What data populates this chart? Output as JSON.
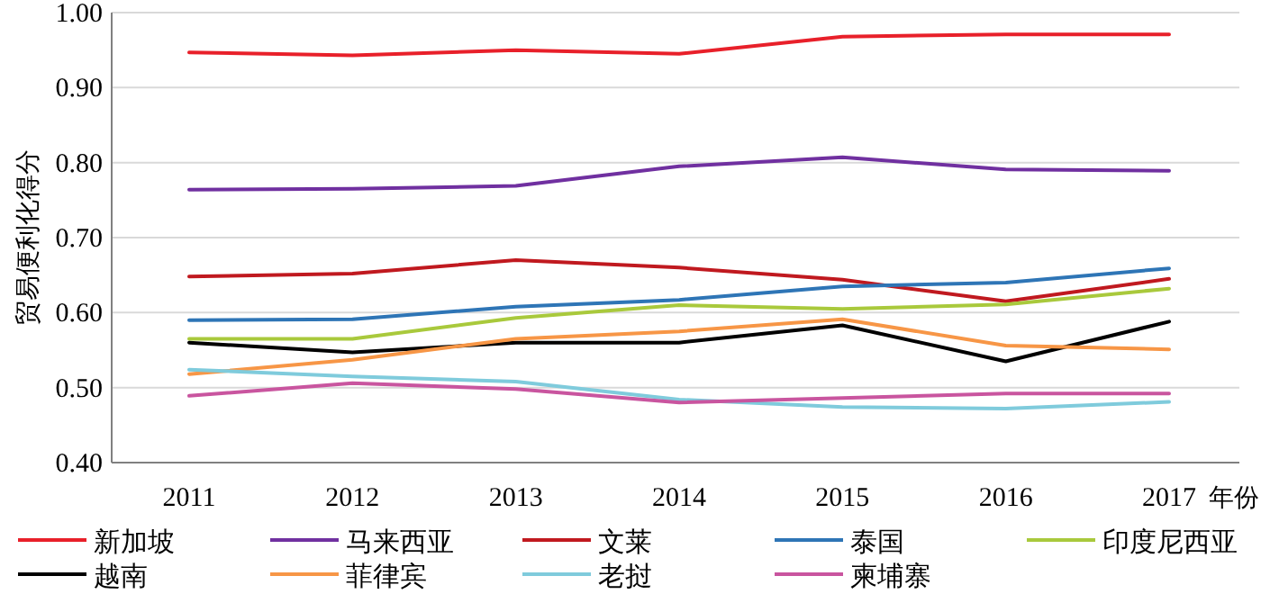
{
  "chart_data": {
    "type": "line",
    "xlabel": "年份",
    "ylabel": "贸易便利化得分",
    "categories": [
      "2011",
      "2012",
      "2013",
      "2014",
      "2015",
      "2016",
      "2017"
    ],
    "series": [
      {
        "name": "新加坡",
        "color": "#e8202a",
        "values": [
          0.947,
          0.943,
          0.95,
          0.945,
          0.968,
          0.971,
          0.971
        ]
      },
      {
        "name": "马来西亚",
        "color": "#7030a0",
        "values": [
          0.764,
          0.765,
          0.769,
          0.795,
          0.807,
          0.791,
          0.789
        ]
      },
      {
        "name": "文莱",
        "color": "#c0191f",
        "values": [
          0.648,
          0.652,
          0.67,
          0.66,
          0.644,
          0.615,
          0.645
        ]
      },
      {
        "name": "泰国",
        "color": "#2e75b6",
        "values": [
          0.59,
          0.591,
          0.608,
          0.617,
          0.635,
          0.64,
          0.659
        ]
      },
      {
        "name": "印度尼西亚",
        "color": "#a9c93c",
        "values": [
          0.565,
          0.565,
          0.593,
          0.61,
          0.605,
          0.611,
          0.632
        ]
      },
      {
        "name": "越南",
        "color": "#000000",
        "values": [
          0.56,
          0.547,
          0.56,
          0.56,
          0.583,
          0.535,
          0.588
        ]
      },
      {
        "name": "菲律宾",
        "color": "#f79646",
        "values": [
          0.518,
          0.537,
          0.565,
          0.575,
          0.591,
          0.556,
          0.551
        ]
      },
      {
        "name": "老挝",
        "color": "#7fcbdc",
        "values": [
          0.524,
          0.515,
          0.508,
          0.484,
          0.474,
          0.472,
          0.481
        ]
      },
      {
        "name": "柬埔寨",
        "color": "#c9559f",
        "values": [
          0.489,
          0.506,
          0.498,
          0.48,
          0.486,
          0.492,
          0.492
        ]
      }
    ],
    "ylim": [
      0.4,
      1.0
    ],
    "yticks": [
      {
        "value": 0.4,
        "label": "0.40"
      },
      {
        "value": 0.5,
        "label": "0.50"
      },
      {
        "value": 0.6,
        "label": "0.60"
      },
      {
        "value": 0.7,
        "label": "0.70"
      },
      {
        "value": 0.8,
        "label": "0.80"
      },
      {
        "value": 0.9,
        "label": "0.90"
      },
      {
        "value": 1.0,
        "label": "1.00"
      }
    ],
    "grid": "y",
    "legend": "bottom",
    "marker": "none",
    "line_style": "solid"
  }
}
